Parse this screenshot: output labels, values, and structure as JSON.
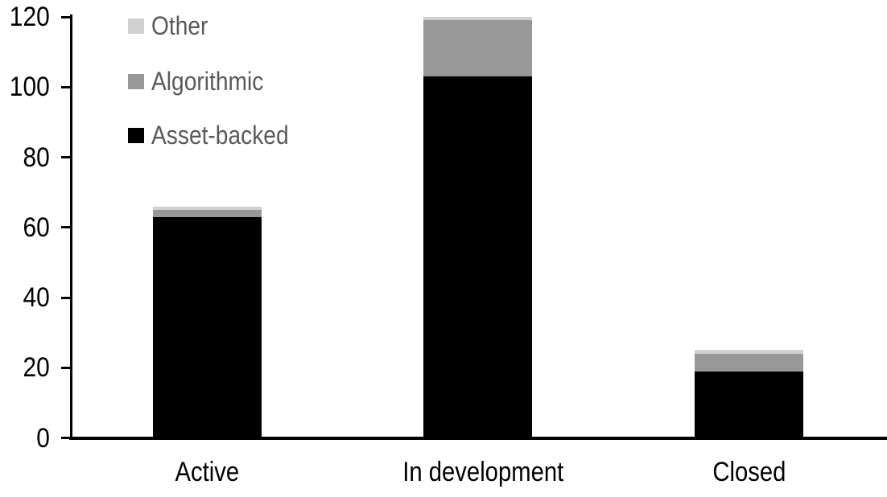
{
  "chart_data": {
    "type": "bar",
    "stacked": true,
    "title": "",
    "xlabel": "",
    "ylabel": "",
    "categories": [
      "Active",
      "In development",
      "Closed"
    ],
    "series": [
      {
        "name": "Asset-backed",
        "color": "#000000",
        "values": [
          63,
          103,
          19
        ]
      },
      {
        "name": "Algorithmic",
        "color": "#989898",
        "values": [
          2,
          16,
          5
        ]
      },
      {
        "name": "Other",
        "color": "#d0d0d0",
        "values": [
          1,
          1,
          1
        ]
      }
    ],
    "ylim": [
      0,
      120
    ],
    "yticks": [
      0,
      20,
      40,
      60,
      80,
      100,
      120
    ],
    "grid": false,
    "legend": {
      "position": "top-left",
      "order_top_to_bottom": [
        "Other",
        "Algorithmic",
        "Asset-backed"
      ],
      "text_color": "#595959"
    },
    "axis_color": "#000000",
    "background_color": "#ffffff"
  }
}
